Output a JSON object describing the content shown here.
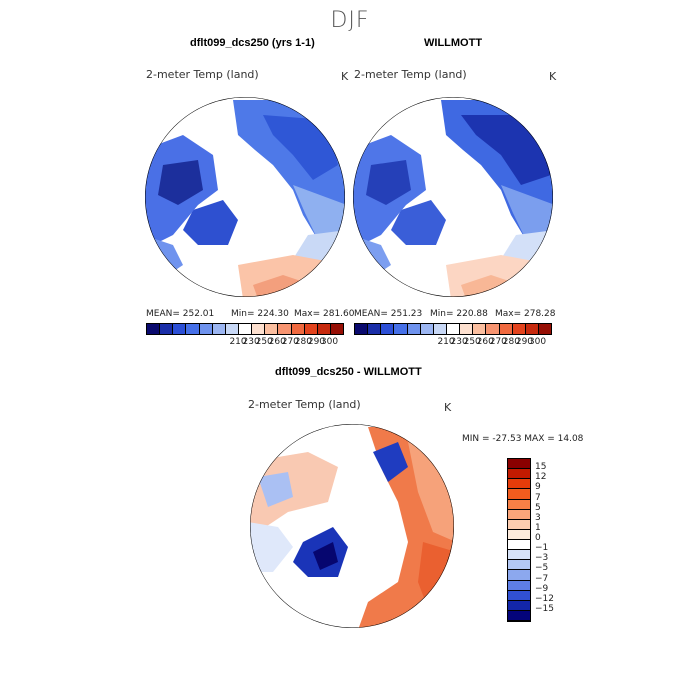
{
  "season": "DJF",
  "variable": "2-meter Temp (land)",
  "units": "K",
  "panels": {
    "model": {
      "title": "dflt099_dcs250 (yrs 1-1)",
      "mean": "MEAN= 252.01",
      "min": "Min= 224.30",
      "max": "Max= 281.60"
    },
    "obs": {
      "title": "WILLMOTT",
      "mean": "MEAN= 251.23",
      "min": "Min= 220.88",
      "max": "Max= 278.28"
    },
    "diff": {
      "title": "dflt099_dcs250 - WILLMOTT",
      "minmax": "MIN = -27.53 MAX =  14.08"
    }
  },
  "abs_colorbar": {
    "colors": [
      "#0a0a6e",
      "#1a2ea8",
      "#2c4fd6",
      "#4670e8",
      "#6f93ee",
      "#9cb6f2",
      "#c8d8f6",
      "#ffffff",
      "#fde0cf",
      "#fbbfa0",
      "#f79470",
      "#f0693f",
      "#e3431d",
      "#c72a0e",
      "#960f05"
    ],
    "labels": [
      "210",
      "230",
      "250",
      "260",
      "270",
      "280",
      "290",
      "300"
    ]
  },
  "diff_colorbar": {
    "colors": [
      "#8a0000",
      "#c21a00",
      "#e63c0a",
      "#f25c1e",
      "#f78046",
      "#fba57a",
      "#fdcdb0",
      "#fdebdc",
      "#ffffff",
      "#d7e3f8",
      "#b3c8f4",
      "#8ca8ee",
      "#5e7ee6",
      "#3150d2",
      "#1326a8",
      "#04047a"
    ],
    "labels": [
      "15",
      "12",
      "9",
      "7",
      "5",
      "3",
      "1",
      "0",
      "-1",
      "-3",
      "-5",
      "-7",
      "-9",
      "-12",
      "-15"
    ]
  }
}
